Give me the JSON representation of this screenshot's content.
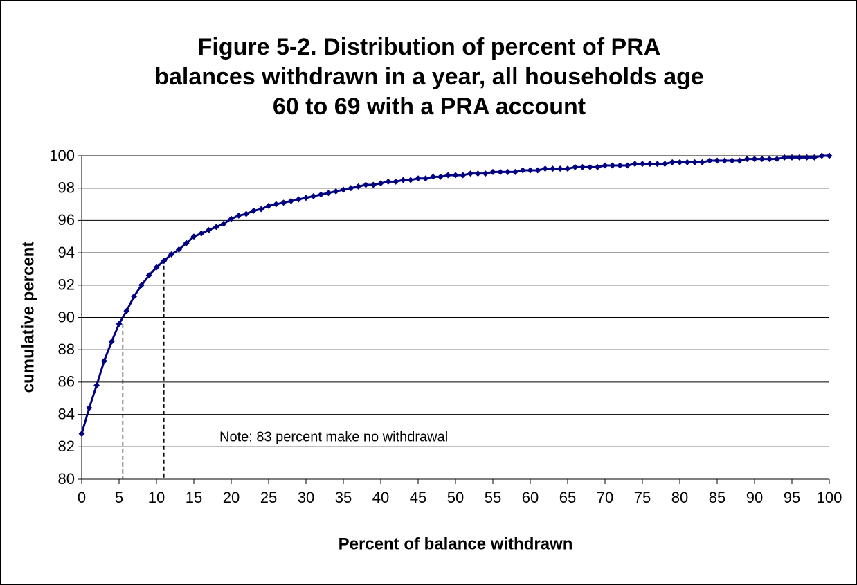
{
  "chart_data": {
    "type": "line",
    "title": [
      "Figure 5-2.  Distribution of percent of PRA",
      "balances withdrawn in a year, all households age",
      "60 to 69 with a PRA account"
    ],
    "x_label": "Percent of balance withdrawn",
    "y_label": "cumulative percent",
    "annotation": "Note:  83 percent make no withdrawal",
    "x": [
      0,
      1,
      2,
      3,
      4,
      5,
      6,
      7,
      8,
      9,
      10,
      11,
      12,
      13,
      14,
      15,
      16,
      17,
      18,
      19,
      20,
      21,
      22,
      23,
      24,
      25,
      26,
      27,
      28,
      29,
      30,
      31,
      32,
      33,
      34,
      35,
      36,
      37,
      38,
      39,
      40,
      41,
      42,
      43,
      44,
      45,
      46,
      47,
      48,
      49,
      50,
      51,
      52,
      53,
      54,
      55,
      56,
      57,
      58,
      59,
      60,
      61,
      62,
      63,
      64,
      65,
      66,
      67,
      68,
      69,
      70,
      71,
      72,
      73,
      74,
      75,
      76,
      77,
      78,
      79,
      80,
      81,
      82,
      83,
      84,
      85,
      86,
      87,
      88,
      89,
      90,
      91,
      92,
      93,
      94,
      95,
      96,
      97,
      98,
      99,
      100
    ],
    "series": [
      {
        "color": "#000080",
        "values": [
          82.8,
          84.4,
          85.8,
          87.3,
          88.5,
          89.6,
          90.4,
          91.3,
          92.0,
          92.6,
          93.1,
          93.5,
          93.9,
          94.2,
          94.6,
          95.0,
          95.2,
          95.4,
          95.6,
          95.8,
          96.1,
          96.3,
          96.4,
          96.6,
          96.7,
          96.9,
          97.0,
          97.1,
          97.2,
          97.3,
          97.4,
          97.5,
          97.6,
          97.7,
          97.8,
          97.9,
          98.0,
          98.1,
          98.2,
          98.2,
          98.3,
          98.4,
          98.4,
          98.5,
          98.5,
          98.6,
          98.6,
          98.7,
          98.7,
          98.8,
          98.8,
          98.8,
          98.9,
          98.9,
          98.9,
          99.0,
          99.0,
          99.0,
          99.0,
          99.1,
          99.1,
          99.1,
          99.2,
          99.2,
          99.2,
          99.2,
          99.3,
          99.3,
          99.3,
          99.3,
          99.4,
          99.4,
          99.4,
          99.4,
          99.5,
          99.5,
          99.5,
          99.5,
          99.5,
          99.6,
          99.6,
          99.6,
          99.6,
          99.6,
          99.7,
          99.7,
          99.7,
          99.7,
          99.7,
          99.8,
          99.8,
          99.8,
          99.8,
          99.8,
          99.9,
          99.9,
          99.9,
          99.9,
          99.9,
          100,
          100
        ]
      }
    ],
    "dashed_lines": [
      {
        "x": 5.5,
        "y": 89.6
      },
      {
        "x": 11,
        "y": 93.2
      }
    ],
    "xlim": [
      0,
      100
    ],
    "xticks": [
      0,
      5,
      10,
      15,
      20,
      25,
      30,
      35,
      40,
      45,
      50,
      55,
      60,
      65,
      70,
      75,
      80,
      85,
      90,
      95,
      100
    ],
    "ylim": [
      80,
      100
    ],
    "yticks": [
      80,
      82,
      84,
      86,
      88,
      90,
      92,
      94,
      96,
      98,
      100
    ],
    "grid": true
  }
}
